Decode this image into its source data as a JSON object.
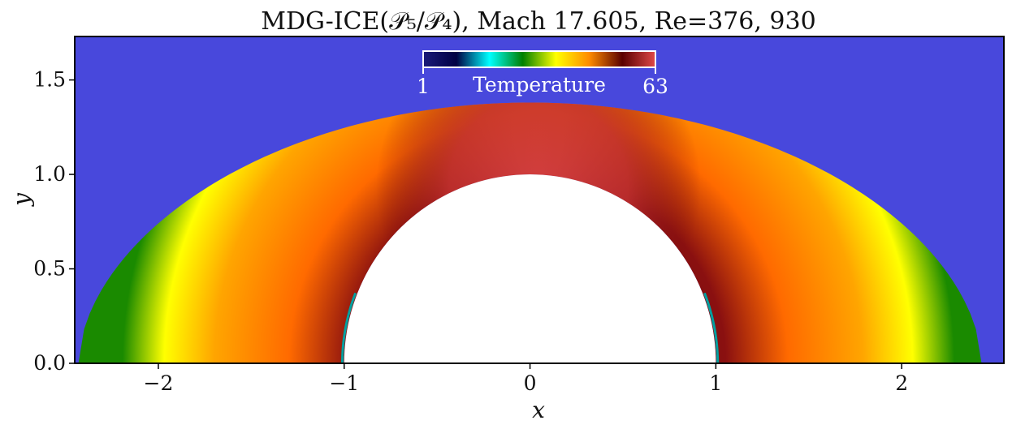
{
  "chart_data": {
    "type": "heatmap",
    "title": "MDG-ICE(𝒫₅/𝒫₄), Mach 17.605, Re=376, 930",
    "xlabel": "x",
    "ylabel": "y",
    "xlim": [
      -2.45,
      2.55
    ],
    "ylim": [
      0.0,
      1.73
    ],
    "x_ticks": [
      {
        "value": -2,
        "label": "−2"
      },
      {
        "value": -1,
        "label": "−1"
      },
      {
        "value": 0,
        "label": "0"
      },
      {
        "value": 1,
        "label": "1"
      },
      {
        "value": 2,
        "label": "2"
      }
    ],
    "y_ticks": [
      {
        "value": 0.0,
        "label": "0.0"
      },
      {
        "value": 0.5,
        "label": "0.5"
      },
      {
        "value": 1.0,
        "label": "1.0"
      },
      {
        "value": 1.5,
        "label": "1.5"
      }
    ],
    "colorbar": {
      "label": "Temperature",
      "min": 1,
      "max": 63,
      "min_label": "1",
      "max_label": "63",
      "location": "top-center, inside axes",
      "colormap_stops": [
        "#1a1a7a",
        "#000044",
        "#00ffff",
        "#008000",
        "#ffff00",
        "#ff8c00",
        "#5a0000",
        "#e04848"
      ]
    },
    "freestream_color": "#4848dc",
    "body": {
      "shape": "cylinder",
      "radius": 1.0,
      "center": [
        0,
        0
      ]
    },
    "shock": {
      "standoff_y": 1.38,
      "x_at_y0": 2.43
    },
    "temperature_field": {
      "freestream": 1,
      "stagnation_max": 63,
      "shock_edge_at_y0": 12
    }
  }
}
